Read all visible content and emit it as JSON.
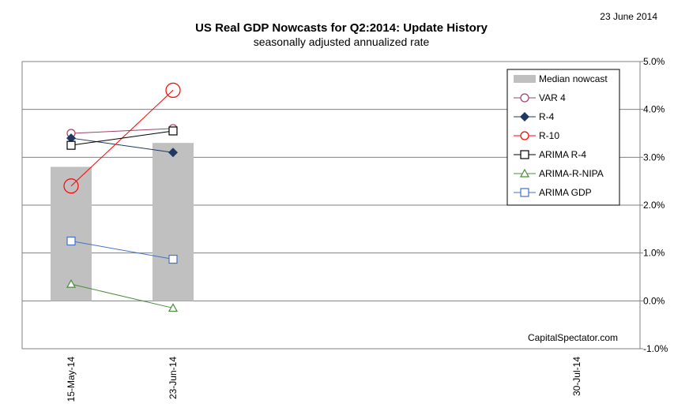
{
  "chart_data": {
    "type": "bar+line",
    "title": "US Real GDP Nowcasts for Q2:2014: Update History",
    "subtitle": "seasonally adjusted annualized rate",
    "date": "23 June 2014",
    "credit": "CapitalSpectator.com",
    "categories": [
      "15-May-14",
      "23-Jun-14",
      "30-Jul-14"
    ],
    "y_axis": {
      "min": -1.0,
      "max": 5.0,
      "step": 1.0,
      "position": "right",
      "tick_labels": [
        "-1.0%",
        "0.0%",
        "1.0%",
        "2.0%",
        "3.0%",
        "4.0%",
        "5.0%"
      ],
      "grid": true
    },
    "legend_position": "top-right",
    "bars": {
      "name": "Median nowcast",
      "color": "#c0c0c0",
      "values": [
        2.8,
        3.3,
        null
      ]
    },
    "series": [
      {
        "name": "VAR 4",
        "color": "#a0416b",
        "marker": "circle",
        "values": [
          3.5,
          3.6,
          null
        ]
      },
      {
        "name": "R-4",
        "color": "#1f3864",
        "marker": "diamond",
        "values": [
          3.4,
          3.1,
          null
        ]
      },
      {
        "name": "R-10",
        "color": "#ff0000",
        "marker": "circle-large",
        "values": [
          2.4,
          4.4,
          null
        ]
      },
      {
        "name": "ARIMA R-4",
        "color": "#000000",
        "marker": "square",
        "values": [
          3.25,
          3.55,
          null
        ]
      },
      {
        "name": "ARIMA-R-NIPA",
        "color": "#4a8c3a",
        "marker": "triangle",
        "values": [
          0.35,
          -0.15,
          null
        ]
      },
      {
        "name": "ARIMA GDP",
        "color": "#4472c4",
        "marker": "square",
        "values": [
          1.25,
          0.87,
          null
        ]
      }
    ]
  }
}
